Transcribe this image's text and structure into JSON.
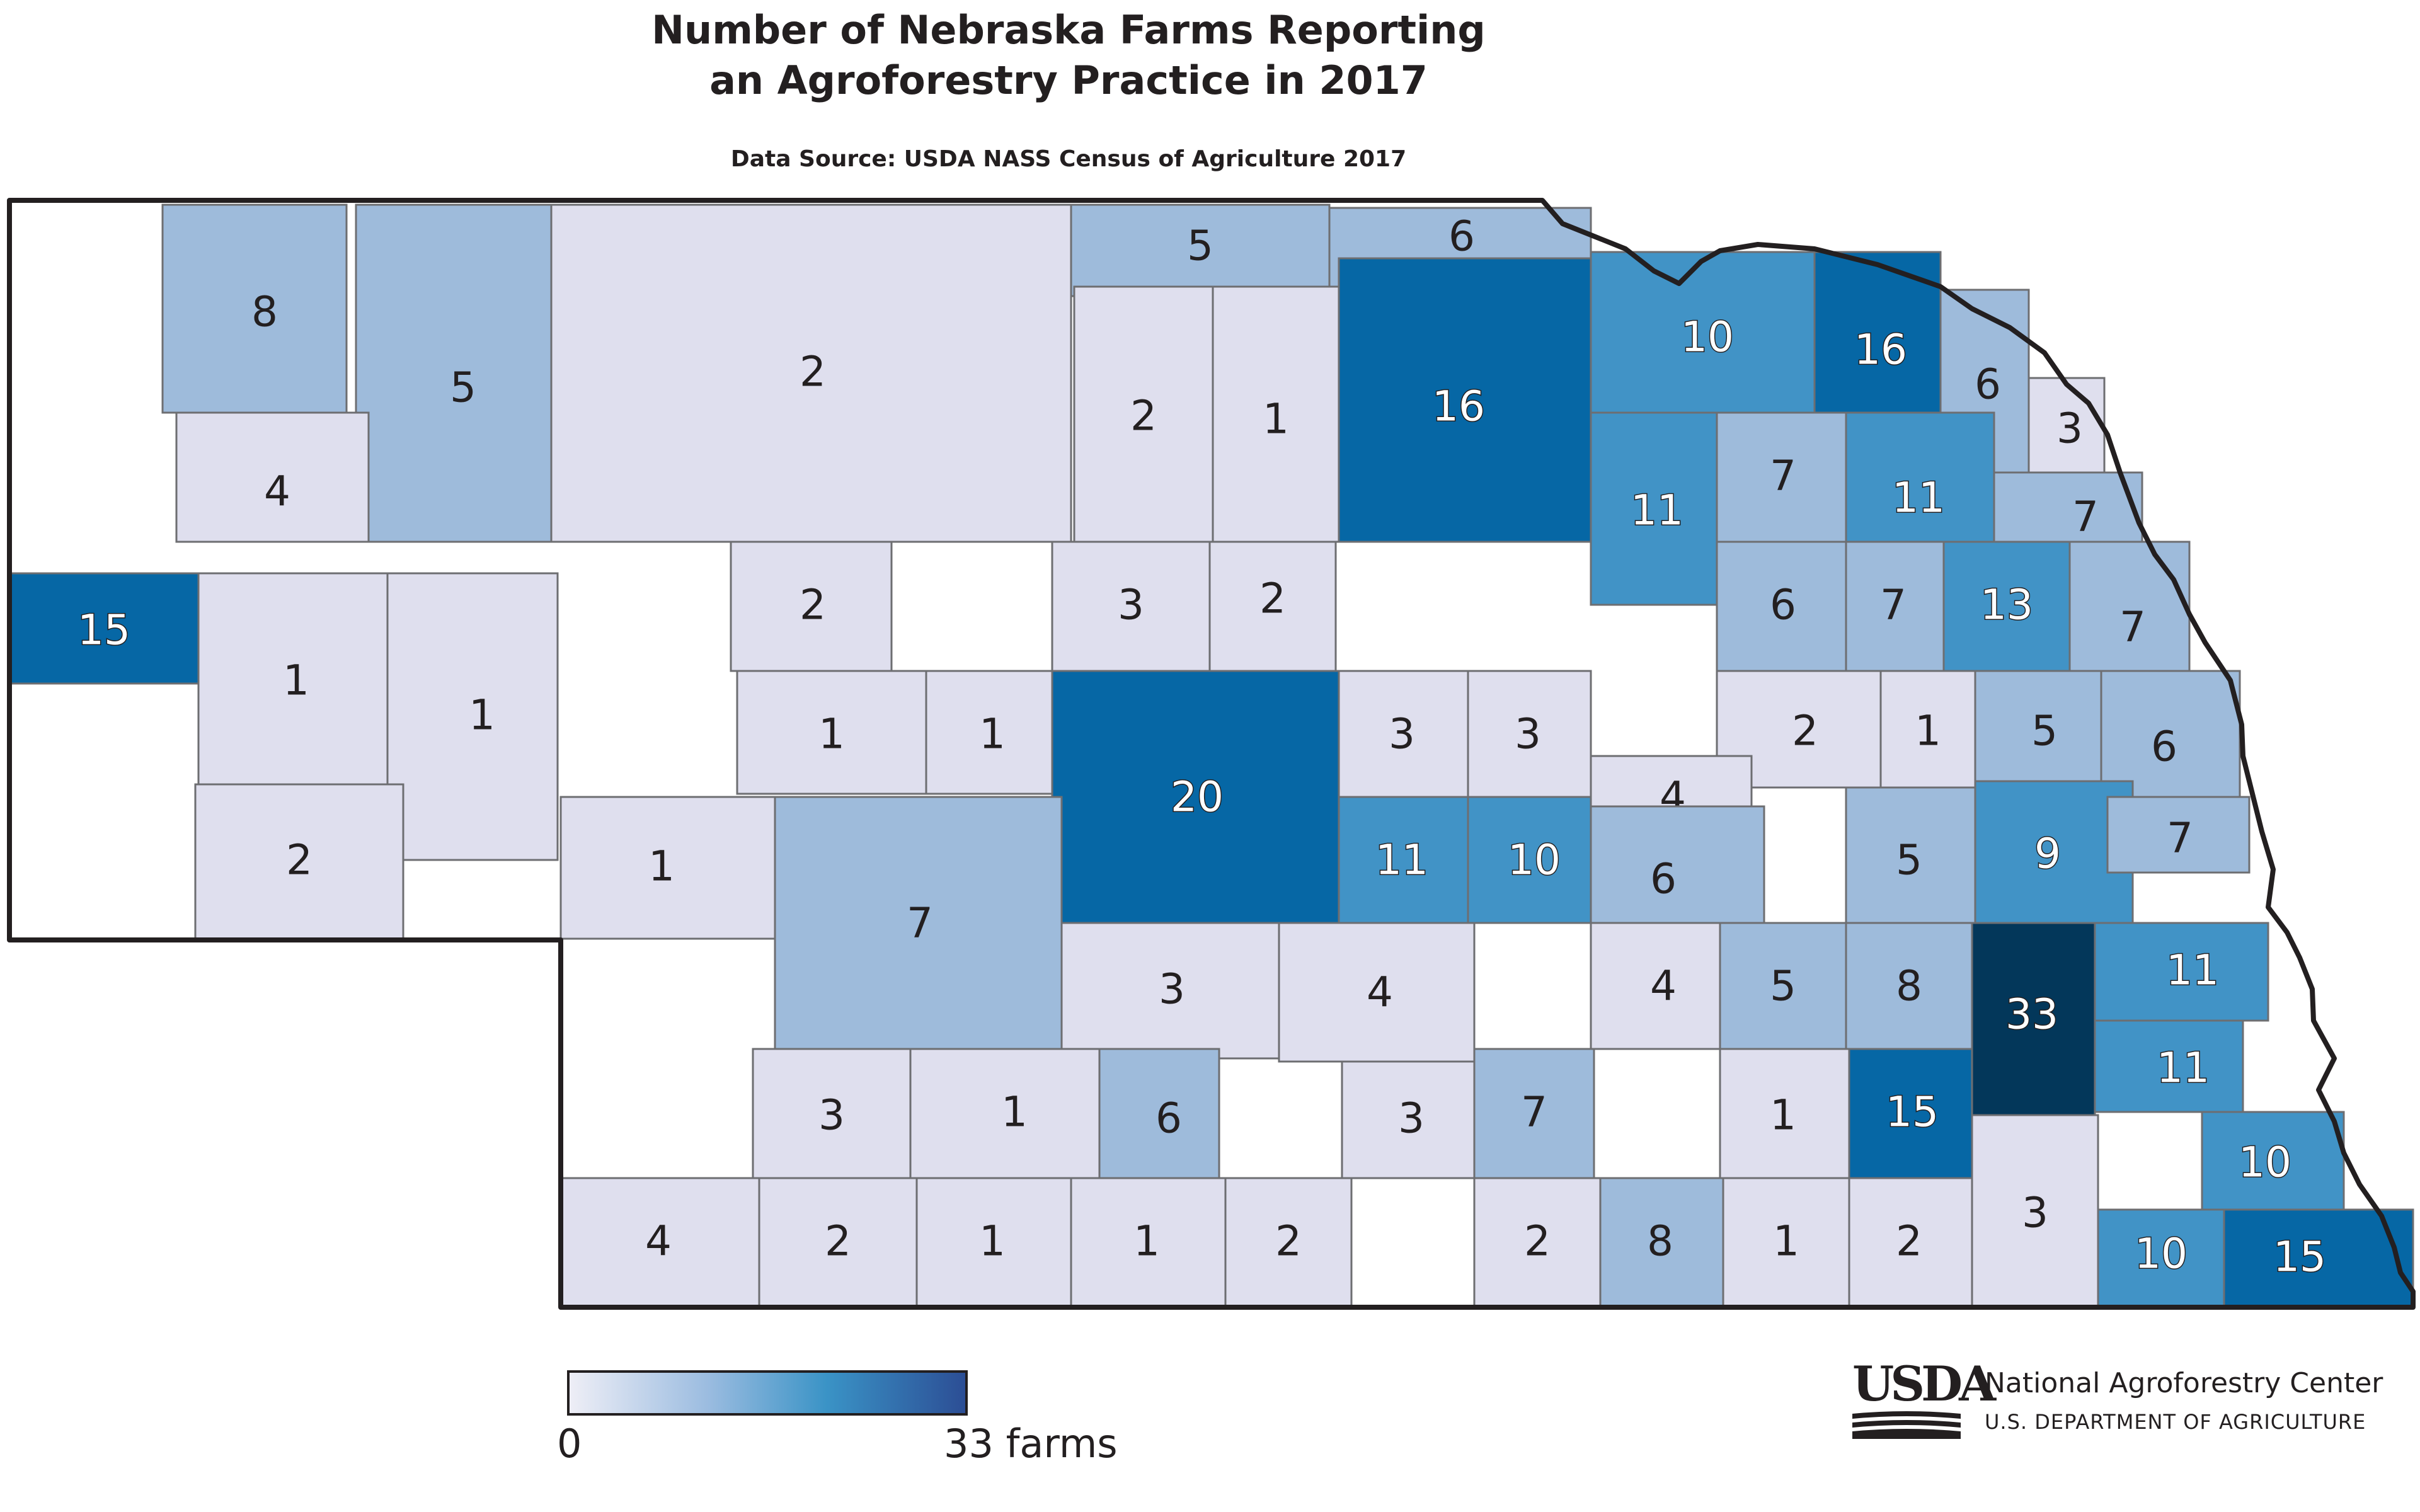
{
  "title_line1": "Number of Nebraska Farms Reporting",
  "title_line2": "an Agroforestry Practice in 2017",
  "source": "Data Source: USDA NASS Census of Agriculture 2017",
  "legend": {
    "min_label": "0",
    "max_label": "33 farms",
    "max_value": 33
  },
  "logo": {
    "text": "USDA",
    "org": "National Agroforestry Center",
    "dept": "U.S. DEPARTMENT OF AGRICULTURE"
  },
  "colors": {
    "empty": "#ffffff",
    "low": "#dfdfee",
    "medium": "#9ebbdb",
    "high": "#4193c6",
    "very_high": "#0667a5",
    "max": "#03375a",
    "outline": "#231f20"
  },
  "county_values": [
    8,
    5,
    2,
    5,
    6,
    4,
    2,
    1,
    16,
    10,
    16,
    6,
    3,
    15,
    1,
    1,
    2,
    3,
    2,
    11,
    7,
    11,
    7,
    6,
    7,
    13,
    7,
    1,
    1,
    20,
    3,
    3,
    2,
    1,
    5,
    6,
    2,
    1,
    7,
    11,
    10,
    4,
    6,
    5,
    9,
    7,
    3,
    4,
    4,
    5,
    8,
    33,
    11,
    3,
    1,
    6,
    3,
    7,
    1,
    15,
    11,
    10,
    4,
    2,
    1,
    1,
    2,
    2,
    8,
    1,
    2,
    3,
    10,
    15
  ]
}
